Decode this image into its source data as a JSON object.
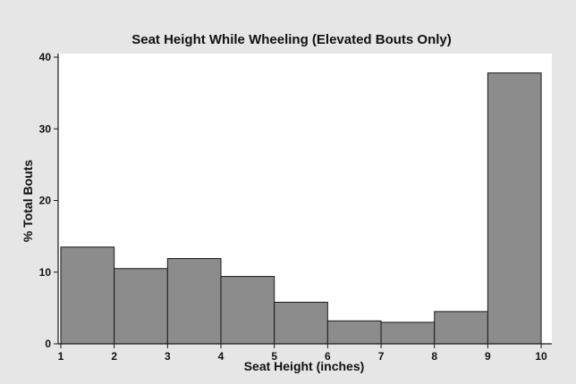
{
  "chart_data": {
    "type": "bar",
    "title": "Seat Height While Wheeling (Elevated Bouts Only)",
    "xlabel": "Seat Height (inches)",
    "ylabel": "% Total Bouts",
    "bins": [
      {
        "from": 1,
        "to": 2,
        "value": 13.5
      },
      {
        "from": 2,
        "to": 3,
        "value": 10.5
      },
      {
        "from": 3,
        "to": 4,
        "value": 11.9
      },
      {
        "from": 4,
        "to": 5,
        "value": 9.4
      },
      {
        "from": 5,
        "to": 6,
        "value": 5.8
      },
      {
        "from": 6,
        "to": 7,
        "value": 3.2
      },
      {
        "from": 7,
        "to": 8,
        "value": 3.0
      },
      {
        "from": 8,
        "to": 9,
        "value": 4.5
      },
      {
        "from": 9,
        "to": 10,
        "value": 37.8
      }
    ],
    "xlim": [
      0.95,
      10.2
    ],
    "ylim": [
      0,
      40.5
    ],
    "xticks": [
      "1",
      "2",
      "3",
      "4",
      "5",
      "6",
      "7",
      "8",
      "9",
      "10"
    ],
    "yticks": [
      "0",
      "10",
      "20",
      "30",
      "40"
    ],
    "grid": false,
    "colors": {
      "outer_background": "#e6e6e6",
      "plot_background": "#ffffff",
      "bar_fill": "#8c8c8c",
      "bar_stroke": "#1a1a1a",
      "axis": "#1a1a1a"
    }
  }
}
